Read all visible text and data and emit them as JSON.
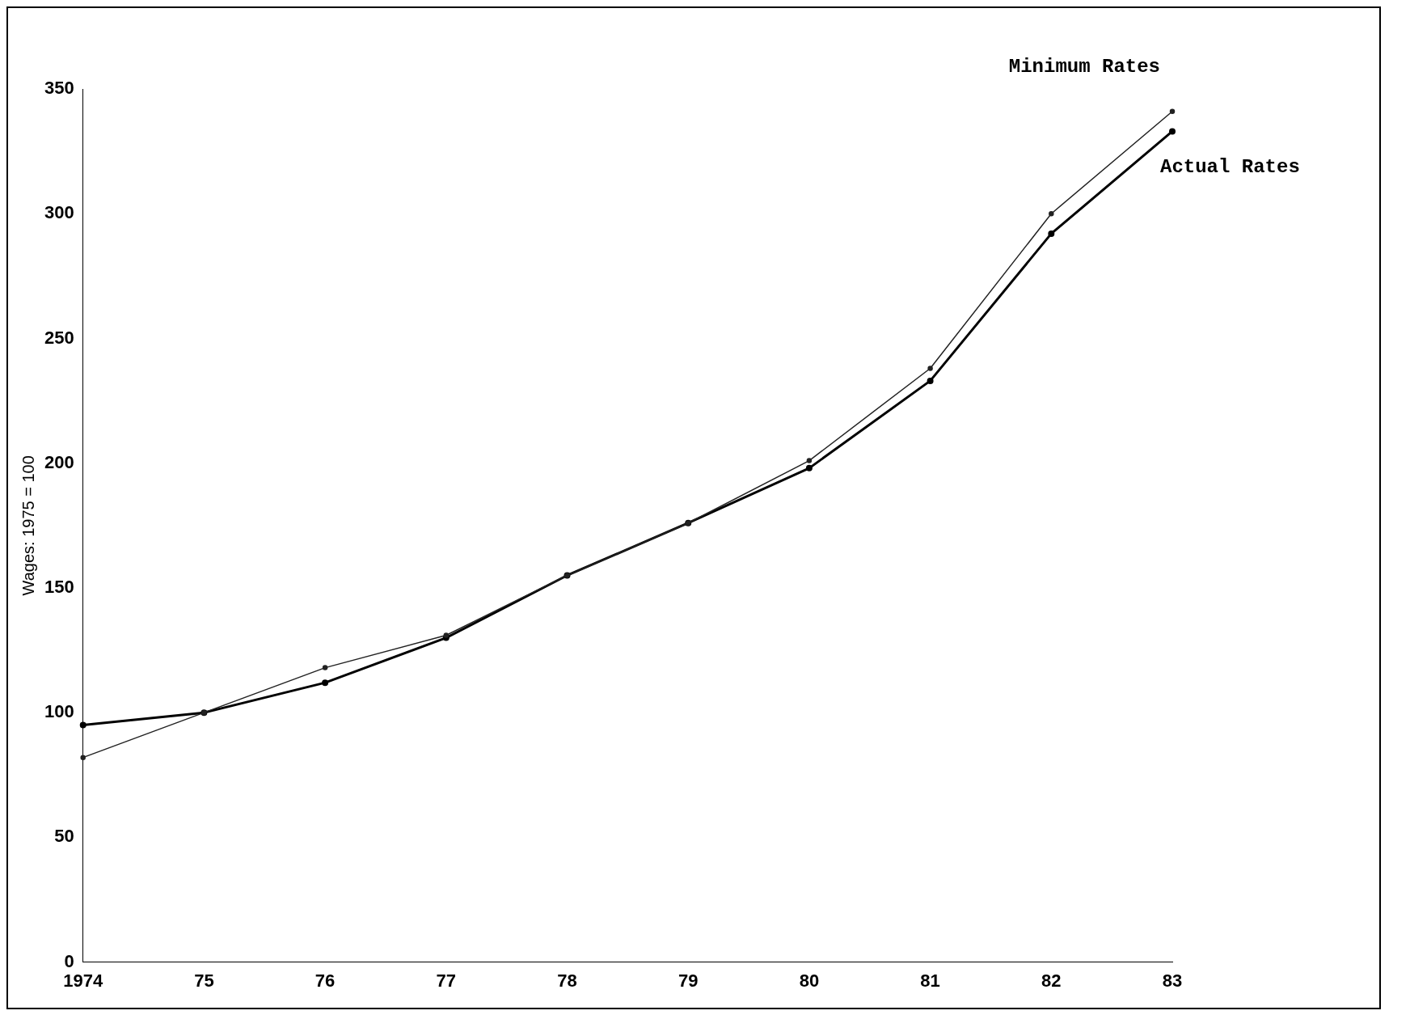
{
  "chart_data": {
    "type": "line",
    "ylabel": "Wages: 1975 = 100",
    "categories": [
      "1974",
      "75",
      "76",
      "77",
      "78",
      "79",
      "80",
      "81",
      "82",
      "83"
    ],
    "series": [
      {
        "name": "Minimum Rates",
        "color": "#222222",
        "values": [
          82,
          100,
          118,
          131,
          155,
          176,
          201,
          238,
          300,
          341
        ]
      },
      {
        "name": "Actual Rates",
        "color": "#000000",
        "values": [
          95,
          100,
          112,
          130,
          155,
          176,
          198,
          233,
          292,
          333
        ]
      }
    ],
    "ylim": [
      0,
      350
    ],
    "yticks": [
      0,
      50,
      100,
      150,
      200,
      250,
      300,
      350
    ],
    "grid": false,
    "legend": false,
    "marker": "circle",
    "line_style": "solid"
  }
}
